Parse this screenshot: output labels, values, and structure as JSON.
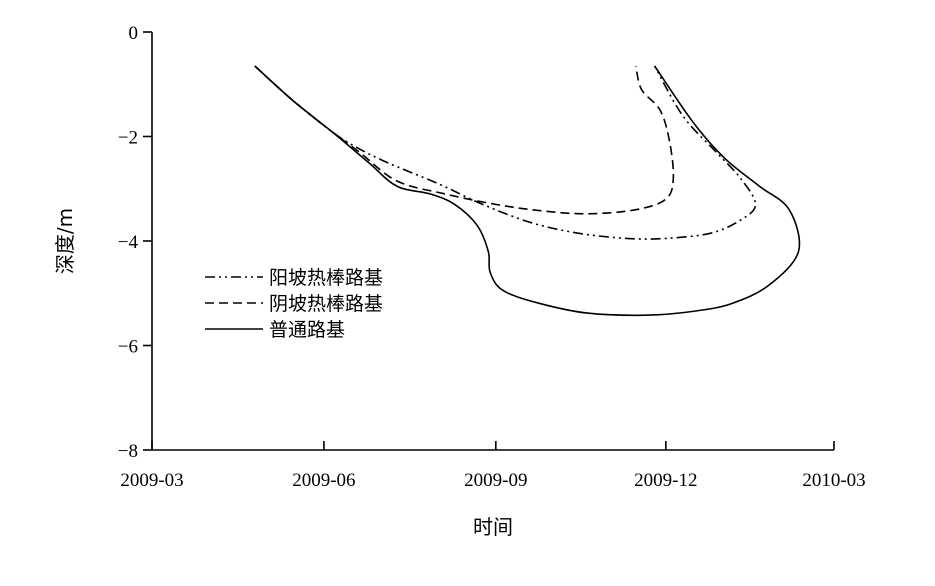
{
  "chart_data": {
    "type": "line",
    "xlabel": "时间",
    "ylabel": "深度/m",
    "xlim": [
      "2009-03",
      "2010-03"
    ],
    "ylim": [
      -8,
      0
    ],
    "x_ticks": [
      "2009-03",
      "2009-06",
      "2009-09",
      "2009-12",
      "2010-03"
    ],
    "y_ticks": [
      0,
      -2,
      -4,
      -6,
      -8
    ],
    "grid": false,
    "legend_position": "left-middle",
    "series": [
      {
        "name": "阳坡热棒路基",
        "line_style": "dash-dot-dot",
        "color": "#000000",
        "points": [
          [
            "2009-04-25",
            -0.65
          ],
          [
            "2009-05-15",
            -1.3
          ],
          [
            "2009-06-05",
            -1.9
          ],
          [
            "2009-06-18",
            -2.2
          ],
          [
            "2009-07-05",
            -2.5
          ],
          [
            "2009-08-01",
            -2.9
          ],
          [
            "2009-08-25",
            -3.3
          ],
          [
            "2009-09-20",
            -3.65
          ],
          [
            "2009-10-15",
            -3.85
          ],
          [
            "2009-11-10",
            -3.95
          ],
          [
            "2009-12-01",
            -3.95
          ],
          [
            "2009-12-25",
            -3.85
          ],
          [
            "2010-01-10",
            -3.6
          ],
          [
            "2010-01-18",
            -3.3
          ],
          [
            "2010-01-10",
            -2.8
          ],
          [
            "2009-12-28",
            -2.3
          ],
          [
            "2009-12-10",
            -1.6
          ],
          [
            "2009-11-25",
            -0.65
          ]
        ]
      },
      {
        "name": "阴坡热棒路基",
        "line_style": "dashed",
        "color": "#000000",
        "points": [
          [
            "2009-04-25",
            -0.65
          ],
          [
            "2009-05-15",
            -1.3
          ],
          [
            "2009-06-05",
            -1.9
          ],
          [
            "2009-06-20",
            -2.3
          ],
          [
            "2009-07-10",
            -2.85
          ],
          [
            "2009-08-05",
            -3.1
          ],
          [
            "2009-09-01",
            -3.3
          ],
          [
            "2009-09-25",
            -3.42
          ],
          [
            "2009-10-20",
            -3.48
          ],
          [
            "2009-11-15",
            -3.4
          ],
          [
            "2009-12-01",
            -3.2
          ],
          [
            "2009-12-05",
            -2.8
          ],
          [
            "2009-12-03",
            -2.1
          ],
          [
            "2009-11-28",
            -1.5
          ],
          [
            "2009-11-18",
            -1.1
          ],
          [
            "2009-11-15",
            -0.65
          ]
        ]
      },
      {
        "name": "普通路基",
        "line_style": "solid",
        "color": "#000000",
        "points": [
          [
            "2009-04-25",
            -0.65
          ],
          [
            "2009-05-15",
            -1.3
          ],
          [
            "2009-06-05",
            -1.9
          ],
          [
            "2009-06-25",
            -2.5
          ],
          [
            "2009-07-10",
            -2.95
          ],
          [
            "2009-07-28",
            -3.1
          ],
          [
            "2009-08-10",
            -3.3
          ],
          [
            "2009-08-22",
            -3.7
          ],
          [
            "2009-08-28",
            -4.2
          ],
          [
            "2009-08-29",
            -4.6
          ],
          [
            "2009-09-05",
            -4.95
          ],
          [
            "2009-09-25",
            -5.2
          ],
          [
            "2009-10-20",
            -5.38
          ],
          [
            "2009-11-20",
            -5.42
          ],
          [
            "2009-12-15",
            -5.35
          ],
          [
            "2010-01-05",
            -5.2
          ],
          [
            "2010-01-25",
            -4.85
          ],
          [
            "2010-02-10",
            -4.2
          ],
          [
            "2010-02-05",
            -3.4
          ],
          [
            "2010-01-20",
            -2.95
          ],
          [
            "2010-01-01",
            -2.4
          ],
          [
            "2009-12-15",
            -1.7
          ],
          [
            "2009-11-25",
            -0.65
          ]
        ]
      }
    ]
  }
}
